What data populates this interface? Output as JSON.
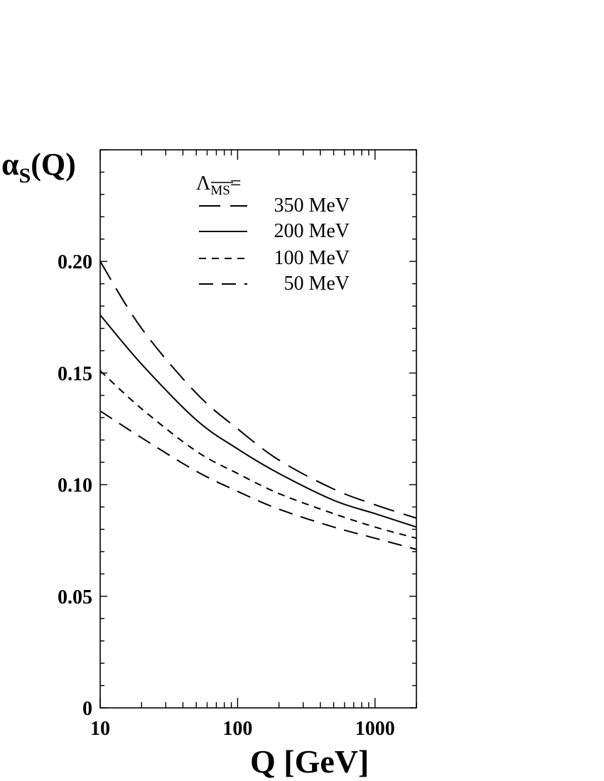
{
  "chart_data": {
    "type": "line",
    "ylabel_main": "α",
    "ylabel_sub": "S",
    "ylabel_tail": "(Q)",
    "xlabel": "Q [GeV]",
    "xscale": "log",
    "xlim": [
      10,
      2000
    ],
    "ylim": [
      0,
      0.25
    ],
    "xticks": [
      {
        "value": 10,
        "label": "10"
      },
      {
        "value": 100,
        "label": "100"
      },
      {
        "value": 1000,
        "label": "1000"
      }
    ],
    "yticks": [
      {
        "value": 0,
        "label": "0"
      },
      {
        "value": 0.05,
        "label": "0.05"
      },
      {
        "value": 0.1,
        "label": "0.10"
      },
      {
        "value": 0.15,
        "label": "0.15"
      },
      {
        "value": 0.2,
        "label": "0.20"
      }
    ],
    "legend": {
      "title_symbol": "Λ",
      "title_sub": "MS",
      "title_tail": "=",
      "placement": "top-center"
    },
    "series": [
      {
        "name": "350 MeV",
        "dash": "long",
        "x": [
          10,
          20,
          50,
          100,
          200,
          500,
          1000,
          2000
        ],
        "y": [
          0.2,
          0.17,
          0.141,
          0.125,
          0.111,
          0.098,
          0.091,
          0.085
        ]
      },
      {
        "name": "200 MeV",
        "dash": "solid",
        "x": [
          10,
          20,
          50,
          100,
          200,
          500,
          1000,
          2000
        ],
        "y": [
          0.176,
          0.154,
          0.129,
          0.116,
          0.105,
          0.093,
          0.087,
          0.081
        ]
      },
      {
        "name": "100 MeV",
        "dash": "short",
        "x": [
          10,
          20,
          50,
          100,
          200,
          500,
          1000,
          2000
        ],
        "y": [
          0.151,
          0.134,
          0.115,
          0.105,
          0.096,
          0.087,
          0.081,
          0.076
        ]
      },
      {
        "name": " 50 MeV",
        "dash": "medium",
        "x": [
          10,
          20,
          50,
          100,
          200,
          500,
          1000,
          2000
        ],
        "y": [
          0.133,
          0.121,
          0.106,
          0.097,
          0.089,
          0.081,
          0.076,
          0.071
        ]
      }
    ]
  }
}
